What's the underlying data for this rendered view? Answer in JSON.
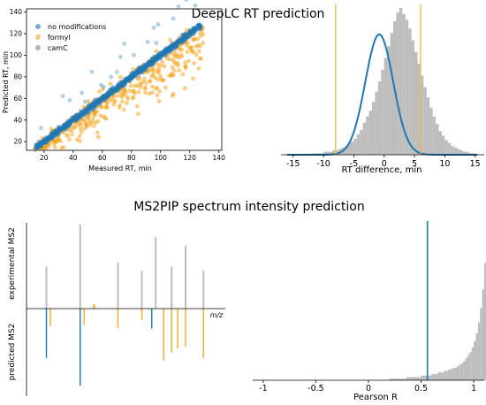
{
  "titles": {
    "top": "DeepLC RT prediction",
    "bottom": "MS2PIP spectrum intensity prediction"
  },
  "colors": {
    "blue": "#1f77b4",
    "orange": "#f5a623",
    "gray": "#808080",
    "hist": "#bdbdbd",
    "vline": "#f5b942"
  },
  "chart_data": [
    {
      "id": "scatter",
      "type": "scatter",
      "title": "",
      "xlabel": "Measured RT, min",
      "ylabel": "Predicted RT, min",
      "xlim": [
        8,
        142
      ],
      "ylim": [
        12,
        143
      ],
      "xticks": [
        20,
        40,
        60,
        80,
        100,
        120,
        140
      ],
      "yticks": [
        20,
        40,
        60,
        80,
        100,
        120,
        140
      ],
      "legend_position": "upper-left",
      "series": [
        {
          "name": "no modifications",
          "color": "#1f77b4"
        },
        {
          "name": "formyl",
          "color": "#f5a623"
        },
        {
          "name": "camC",
          "color": "#808080"
        }
      ]
    },
    {
      "id": "rt_hist",
      "type": "bar",
      "title": "",
      "xlabel": "RT difference, min",
      "xlim": [
        -17,
        16.5
      ],
      "xticks": [
        -15,
        -10,
        -5,
        0,
        5,
        10,
        15
      ],
      "bin_width": 0.5,
      "bins_start": -12,
      "counts": [
        1,
        1,
        1,
        1,
        2,
        2,
        2,
        3,
        3,
        4,
        5,
        6,
        8,
        9,
        11,
        14,
        17,
        22,
        26,
        30,
        36,
        43,
        50,
        58,
        66,
        74,
        83,
        91,
        97,
        100,
        96,
        92,
        86,
        78,
        70,
        62,
        54,
        46,
        39,
        32,
        26,
        21,
        16,
        13,
        10,
        8,
        6,
        5,
        4,
        3,
        2,
        2,
        1,
        1
      ],
      "fit_curve": {
        "mean": -0.8,
        "sd": 2.3,
        "peak_fraction": 0.82
      },
      "vlines": [
        -8,
        6
      ]
    },
    {
      "id": "spectrum",
      "type": "bar",
      "title": "",
      "xlabel": "m/z",
      "ylabel_top": "experimental MS2",
      "ylabel_bottom": "predicted MS2",
      "experimental": [
        {
          "x": 0.1,
          "value": 0.5,
          "color": "#bdbdbd"
        },
        {
          "x": 0.27,
          "value": 1.0,
          "color": "#bdbdbd"
        },
        {
          "x": 0.34,
          "value": 0.05,
          "color": "#f5a623"
        },
        {
          "x": 0.46,
          "value": 0.55,
          "color": "#bdbdbd"
        },
        {
          "x": 0.58,
          "value": 0.45,
          "color": "#bdbdbd"
        },
        {
          "x": 0.65,
          "value": 0.85,
          "color": "#bdbdbd"
        },
        {
          "x": 0.73,
          "value": 0.5,
          "color": "#bdbdbd"
        },
        {
          "x": 0.8,
          "value": 0.75,
          "color": "#bdbdbd"
        },
        {
          "x": 0.89,
          "value": 0.45,
          "color": "#bdbdbd"
        }
      ],
      "predicted": [
        {
          "x": 0.1,
          "value": 0.62,
          "color": "#1f77b4"
        },
        {
          "x": 0.12,
          "value": 0.22,
          "color": "#f5a623"
        },
        {
          "x": 0.27,
          "value": 0.97,
          "color": "#1f77b4"
        },
        {
          "x": 0.29,
          "value": 0.2,
          "color": "#f5a623"
        },
        {
          "x": 0.46,
          "value": 0.24,
          "color": "#f5a623"
        },
        {
          "x": 0.58,
          "value": 0.14,
          "color": "#f5a623"
        },
        {
          "x": 0.63,
          "value": 0.25,
          "color": "#1f77b4"
        },
        {
          "x": 0.69,
          "value": 0.65,
          "color": "#f5a623"
        },
        {
          "x": 0.73,
          "value": 0.55,
          "color": "#f5a623"
        },
        {
          "x": 0.76,
          "value": 0.5,
          "color": "#f5a623"
        },
        {
          "x": 0.8,
          "value": 0.48,
          "color": "#f5a623"
        },
        {
          "x": 0.89,
          "value": 0.62,
          "color": "#f5a623"
        }
      ]
    },
    {
      "id": "pearson_hist",
      "type": "bar",
      "title": "",
      "xlabel": "Pearson R",
      "xlim": [
        -1.1,
        1.1
      ],
      "xticks": [
        -1.0,
        -0.5,
        0.0,
        0.5,
        1.0
      ],
      "bin_width": 0.02,
      "bins_start": 0.2,
      "counts": [
        1,
        1,
        1,
        1,
        1,
        1,
        1,
        1,
        2,
        2,
        2,
        2,
        2,
        2,
        2,
        3,
        3,
        3,
        3,
        3,
        4,
        4,
        4,
        5,
        5,
        5,
        6,
        6,
        7,
        7,
        8,
        8,
        9,
        10,
        11,
        12,
        14,
        16,
        18,
        21,
        25,
        30,
        37,
        46,
        58,
        75,
        100,
        88
      ],
      "vline": 0.56
    }
  ]
}
